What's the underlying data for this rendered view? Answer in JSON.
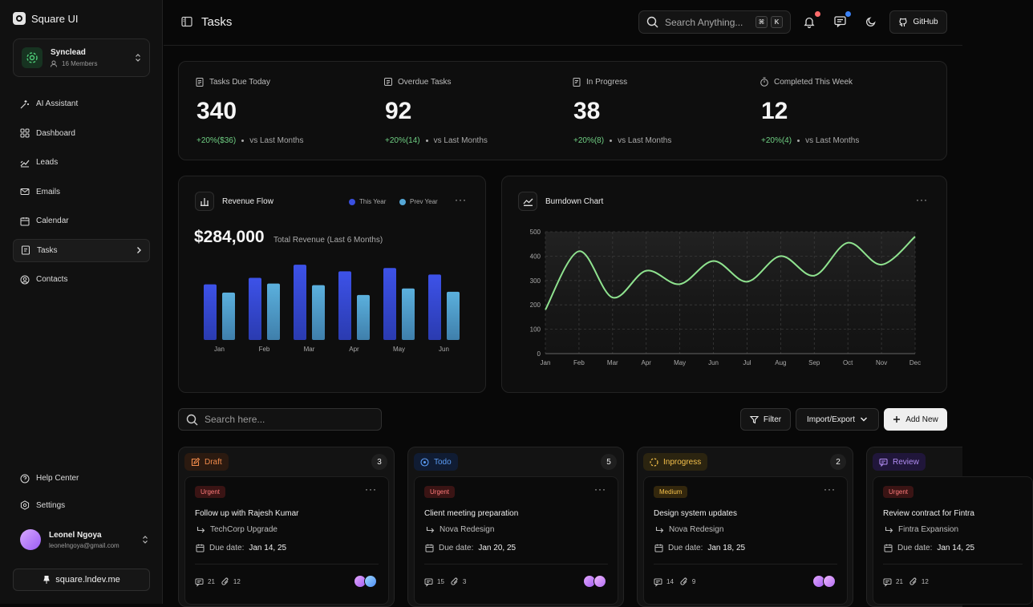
{
  "app": {
    "name": "Square UI"
  },
  "workspace": {
    "name": "Synclead",
    "members": "16 Members"
  },
  "nav": [
    {
      "label": "AI Assistant",
      "icon": "sparkles-icon"
    },
    {
      "label": "Dashboard",
      "icon": "grid-icon"
    },
    {
      "label": "Leads",
      "icon": "leads-icon"
    },
    {
      "label": "Emails",
      "icon": "mail-icon"
    },
    {
      "label": "Calendar",
      "icon": "calendar-icon"
    },
    {
      "label": "Tasks",
      "icon": "tasks-icon",
      "active": true
    },
    {
      "label": "Contacts",
      "icon": "contacts-icon"
    }
  ],
  "bottom_nav": [
    {
      "label": "Help Center"
    },
    {
      "label": "Settings"
    }
  ],
  "user": {
    "name": "Leonel Ngoya",
    "email": "leonelngoya@gmail.com"
  },
  "site": {
    "label": "square.lndev.me"
  },
  "header": {
    "title": "Tasks",
    "search_placeholder": "Search Anything...",
    "kbd1": "⌘",
    "kbd2": "K",
    "github": "GitHub"
  },
  "colors": {
    "accent_green": "#6fcf83",
    "bar_this_year": "#3a50e0",
    "bar_prev_year": "#55a7d6",
    "line": "#8fe38f",
    "notif_red": "#ff6b6b",
    "notif_blue": "#3b82f6"
  },
  "stats": [
    {
      "label": "Tasks Due Today",
      "value": "340",
      "change": "+20%($36)",
      "compare": "vs Last Months"
    },
    {
      "label": "Overdue Tasks",
      "value": "92",
      "change": "+20%(14)",
      "compare": "vs Last Months"
    },
    {
      "label": "In Progress",
      "value": "38",
      "change": "+20%(8)",
      "compare": "vs Last Months"
    },
    {
      "label": "Completed This Week",
      "value": "12",
      "change": "+20%(4)",
      "compare": "vs Last Months"
    }
  ],
  "revenue": {
    "title": "Revenue Flow",
    "total": "$284,000",
    "total_label": "Total Revenue (Last 6 Months)",
    "legend_this": "This Year",
    "legend_prev": "Prev Year"
  },
  "burndown": {
    "title": "Burndown Chart"
  },
  "chart_data": [
    {
      "type": "bar",
      "title": "Revenue Flow",
      "categories": [
        "Jan",
        "Feb",
        "Mar",
        "Apr",
        "May",
        "Jun"
      ],
      "series": [
        {
          "name": "This Year",
          "values": [
            68,
            76,
            92,
            84,
            88,
            80
          ]
        },
        {
          "name": "Prev Year",
          "values": [
            58,
            69,
            67,
            55,
            63,
            59
          ]
        }
      ],
      "ylim": [
        0,
        100
      ]
    },
    {
      "type": "line",
      "title": "Burndown Chart",
      "categories": [
        "Jan",
        "Feb",
        "Mar",
        "Apr",
        "May",
        "Jun",
        "Jul",
        "Aug",
        "Sep",
        "Oct",
        "Nov",
        "Dec"
      ],
      "yticks": [
        "0",
        "100",
        "200",
        "300",
        "400",
        "500"
      ],
      "series": [
        {
          "name": "Burndown",
          "values": [
            180,
            420,
            230,
            340,
            285,
            380,
            295,
            400,
            320,
            455,
            365,
            480
          ]
        }
      ],
      "ylim": [
        0,
        500
      ]
    }
  ],
  "toolbar": {
    "search_placeholder": "Search here...",
    "filter": "Filter",
    "import_export": "Import/Export",
    "add_new": "Add New"
  },
  "columns": [
    {
      "name": "Draft",
      "count": "3",
      "color": "#f08a4b",
      "bg": "#2b1a10",
      "task": {
        "priority": "Urgent",
        "title": "Follow up with Rajesh Kumar",
        "project": "TechCorp Upgrade",
        "due_label": "Due date:",
        "due": "Jan 14, 25",
        "comments": "21",
        "attachments": "12"
      }
    },
    {
      "name": "Todo",
      "count": "5",
      "color": "#5b9cf5",
      "bg": "#101c33",
      "task": {
        "priority": "Urgent",
        "title": "Client meeting preparation",
        "project": "Nova Redesign",
        "due_label": "Due date:",
        "due": "Jan 20, 25",
        "comments": "15",
        "attachments": "3"
      }
    },
    {
      "name": "Inprogress",
      "count": "2",
      "color": "#f5c14b",
      "bg": "#2b2410",
      "task": {
        "priority": "Medium",
        "title": "Design system updates",
        "project": "Nova Redesign",
        "due_label": "Due date:",
        "due": "Jan 18, 25",
        "comments": "14",
        "attachments": "9"
      }
    },
    {
      "name": "Review",
      "count": "",
      "color": "#b18cf2",
      "bg": "#20163a",
      "task": {
        "priority": "Urgent",
        "title": "Review contract for Fintra",
        "project": "Fintra Expansion",
        "due_label": "Due date:",
        "due": "Jan 14, 25",
        "comments": "21",
        "attachments": "12"
      }
    }
  ]
}
